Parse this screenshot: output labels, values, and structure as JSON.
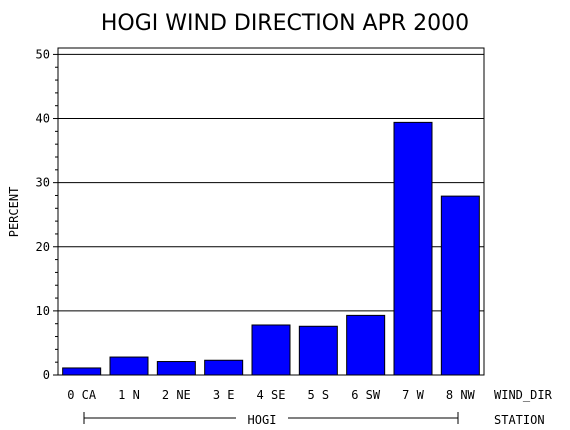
{
  "chart_data": {
    "type": "bar",
    "title": "HOGI WIND DIRECTION APR 2000",
    "ylabel": "PERCENT",
    "xlabel": "WIND_DIR",
    "group_axis_label": "STATION",
    "group_label": "HOGI",
    "categories": [
      "0 CA",
      "1 N",
      "2 NE",
      "3 E",
      "4 SE",
      "5 S",
      "6 SW",
      "7 W",
      "8 NW"
    ],
    "values": [
      1.1,
      2.8,
      2.1,
      2.3,
      7.8,
      7.6,
      9.3,
      39.4,
      27.9
    ],
    "ylim": [
      0,
      51
    ],
    "yticks": [
      "0",
      "10",
      "20",
      "30",
      "40",
      "50"
    ],
    "grid": true,
    "bar_color": "#0000ff"
  }
}
